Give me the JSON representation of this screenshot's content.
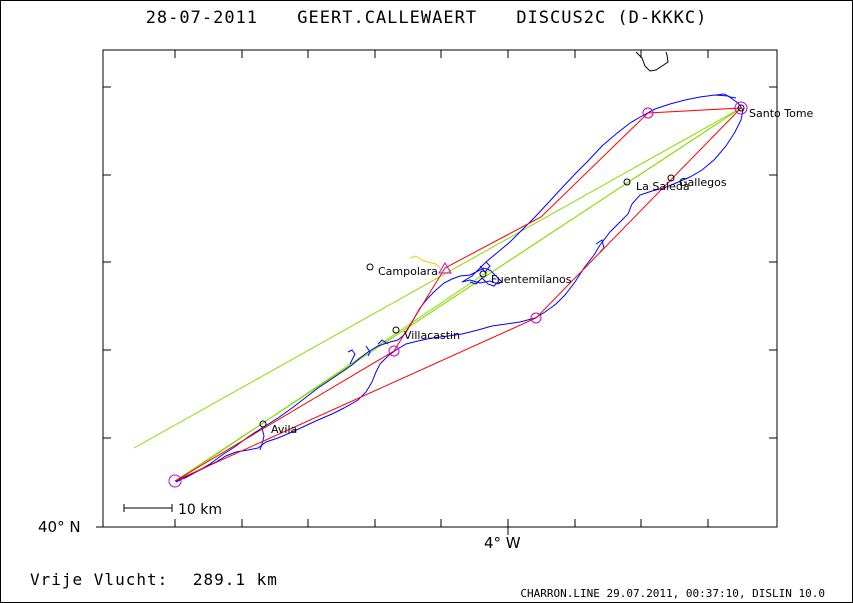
{
  "header": {
    "date": "28-07-2011",
    "pilot": "GEERT.CALLEWAERT",
    "glider": "DISCUS2C (D-KKKC)"
  },
  "axes": {
    "lat_label": "40° N",
    "lon_label": "4° W"
  },
  "scale_bar": {
    "label": "10 km"
  },
  "places": [
    {
      "name": "Santo Tome"
    },
    {
      "name": "La Saleda"
    },
    {
      "name": "Gallegos"
    },
    {
      "name": "Campolara"
    },
    {
      "name": "Fuentemilanos"
    },
    {
      "name": "Villacastin"
    },
    {
      "name": "Avila"
    }
  ],
  "footer": {
    "label": "Vrije Vlucht:",
    "distance": "289.1 km",
    "credit": "CHARRON.LINE 29.07.2011, 00:37:10, DISLIN 10.0"
  },
  "colors": {
    "track": "#0000ff",
    "task": "#ff0000",
    "optimized": "#88dd00",
    "turnpoint": "#cc00cc",
    "start_track": "#e8d000"
  }
}
